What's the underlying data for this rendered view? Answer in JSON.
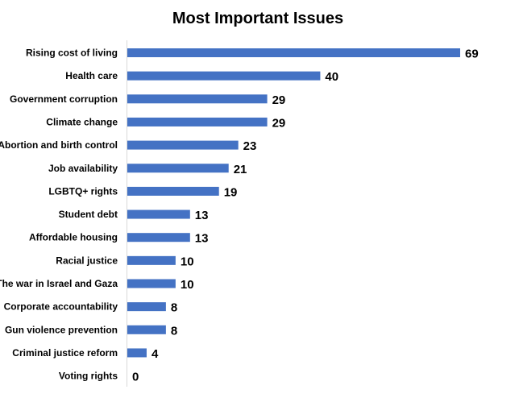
{
  "chart_data": {
    "type": "bar",
    "orientation": "horizontal",
    "title": "Most Important Issues",
    "xlabel": "",
    "ylabel": "",
    "xlim": [
      0,
      69
    ],
    "grid": false,
    "legend": "none",
    "categories": [
      "Rising cost of living",
      "Health care",
      "Government corruption",
      "Climate change",
      "Abortion and birth control",
      "Job availability",
      "LGBTQ+ rights",
      "Student debt",
      "Affordable housing",
      "Racial justice",
      "The war in Israel and Gaza",
      "Corporate accountability",
      "Gun violence prevention",
      "Criminal justice reform",
      "Voting rights"
    ],
    "values": [
      69,
      40,
      29,
      29,
      23,
      21,
      19,
      13,
      13,
      10,
      10,
      8,
      8,
      4,
      0
    ],
    "series": [
      {
        "name": "Most Important Issues",
        "values": [
          69,
          40,
          29,
          29,
          23,
          21,
          19,
          13,
          13,
          10,
          10,
          8,
          8,
          4,
          0
        ]
      }
    ],
    "bar_color": "#4472C4",
    "axis_color": "#D9D9D9"
  }
}
